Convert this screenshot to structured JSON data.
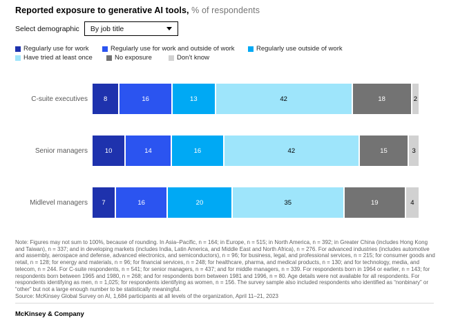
{
  "header": {
    "title": "Reported exposure to generative AI tools,",
    "subtitle": " % of respondents"
  },
  "controls": {
    "label": "Select demographic",
    "dropdown_value": "By job title"
  },
  "chart_data": {
    "type": "bar",
    "orientation": "horizontal",
    "stacked": true,
    "value_unit": "% of respondents",
    "title": "Reported exposure to generative AI tools",
    "categories": [
      "C-suite executives",
      "Senior managers",
      "Midlevel managers"
    ],
    "series": [
      {
        "name": "Regularly use for work",
        "color": "#1e32ad",
        "label_color": "#ffffff",
        "values": [
          8,
          10,
          7
        ]
      },
      {
        "name": "Regularly use for work and outside of work",
        "color": "#2b54f0",
        "label_color": "#ffffff",
        "values": [
          16,
          14,
          16
        ]
      },
      {
        "name": "Regularly use outside of work",
        "color": "#00a9f4",
        "label_color": "#ffffff",
        "values": [
          13,
          16,
          20
        ]
      },
      {
        "name": "Have tried at least once",
        "color": "#9ee5fb",
        "label_color": "#000000",
        "values": [
          42,
          42,
          35
        ]
      },
      {
        "name": "No exposure",
        "color": "#737373",
        "label_color": "#ffffff",
        "values": [
          18,
          15,
          19
        ]
      },
      {
        "name": "Don’t know",
        "color": "#d1d1d1",
        "label_color": "#000000",
        "values": [
          2,
          3,
          4
        ]
      }
    ],
    "legend_position": "top",
    "grid": false,
    "xlim": [
      0,
      100
    ]
  },
  "note": {
    "text": "Note: Figures may not sum to 100%, because of rounding. In Asia–Pacific, n = 164; in Europe, n = 515; in North America, n = 392; in Greater China (includes Hong Kong and Taiwan), n = 337; and in developing markets (includes India, Latin America, and Middle East and North Africa), n = 276. For advanced industries (includes automotive and assembly, aerospace and defense, advanced electronics, and semiconductors), n = 96; for business, legal, and professional services, n = 215; for consumer goods and retail, n = 128; for energy and materials, n = 96; for financial services, n = 248; for healthcare, pharma, and medical products, n = 130; and for technology, media, and telecom, n = 244. For C-suite respondents, n = 541; for senior managers, n = 437; and for middle managers, n = 339. For respondents born in 1964 or earlier, n = 143; for respondents born between 1965 and 1980, n = 268; and for respondents born between 1981 and 1996, n = 80. Age details were not available for all respondents. For respondents identifying as men, n = 1,025; for respondents identifying as women, n = 156. The survey sample also included respondents who identified as “nonbinary” or “other” but not a large enough number to be statistically meaningful.",
    "source": "Source: McKinsey Global Survey on AI, 1,684 participants at all levels of the organization, April 11–21, 2023"
  },
  "footer": {
    "brand": "McKinsey & Company"
  }
}
